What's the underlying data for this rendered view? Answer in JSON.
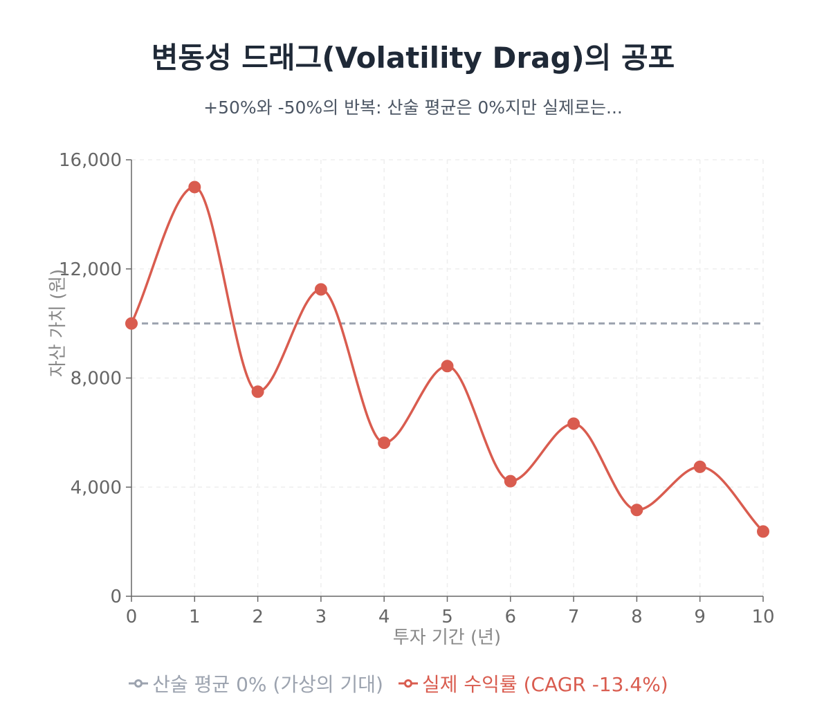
{
  "chart_data": {
    "type": "line",
    "title": "변동성 드래그(Volatility Drag)의 공포",
    "subtitle": "+50%와 -50%의 반복: 산술 평균은 0%지만 실제로는...",
    "xlabel": "투자 기간 (년)",
    "ylabel": "자산 가치 (원)",
    "x": [
      0,
      1,
      2,
      3,
      4,
      5,
      6,
      7,
      8,
      9,
      10
    ],
    "xlim": [
      0,
      10
    ],
    "ylim": [
      0,
      16000
    ],
    "yticks": [
      0,
      4000,
      8000,
      12000,
      16000
    ],
    "ytick_labels": [
      "0",
      "4,000",
      "8,000",
      "12,000",
      "16,000"
    ],
    "xtick_labels": [
      "0",
      "1",
      "2",
      "3",
      "4",
      "5",
      "6",
      "7",
      "8",
      "9",
      "10"
    ],
    "grid": true,
    "legend_position": "bottom",
    "series": [
      {
        "name": "산술 평균 0% (가상의 기대)",
        "values": [
          10000,
          10000,
          10000,
          10000,
          10000,
          10000,
          10000,
          10000,
          10000,
          10000,
          10000
        ],
        "color": "#9ca3af",
        "style": "dashed"
      },
      {
        "name": "실제 수익률 (CAGR -13.4%)",
        "values": [
          10000,
          15000,
          7500,
          11250,
          5625,
          8438,
          4219,
          6328,
          3164,
          4746,
          2373
        ],
        "color": "#d95c4f",
        "style": "smooth"
      }
    ]
  }
}
